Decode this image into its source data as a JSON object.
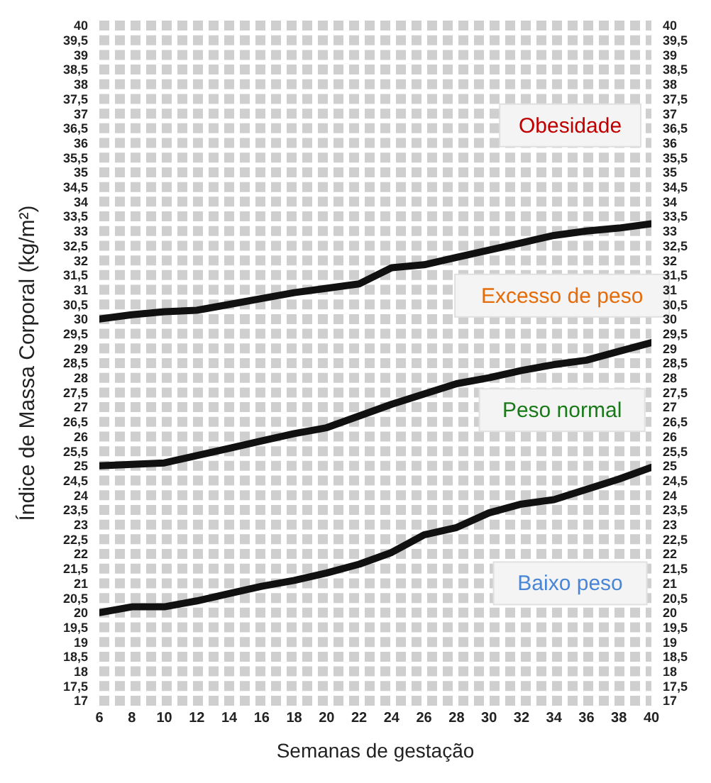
{
  "chart_data": {
    "type": "line",
    "xlabel": "Semanas de gestação",
    "ylabel": "Índice de Massa Corporal (kg/m²)",
    "x": [
      6,
      8,
      10,
      12,
      14,
      16,
      18,
      20,
      22,
      24,
      26,
      28,
      30,
      32,
      34,
      36,
      38,
      40
    ],
    "series": [
      {
        "color": "#111111",
        "values": [
          30,
          30.15,
          30.25,
          30.3,
          30.5,
          30.7,
          30.9,
          31.05,
          31.2,
          31.75,
          31.85,
          32.1,
          32.35,
          32.6,
          32.85,
          33.0,
          33.1,
          33.25
        ]
      },
      {
        "color": "#111111",
        "values": [
          25,
          25.05,
          25.1,
          25.35,
          25.6,
          25.85,
          26.1,
          26.3,
          26.7,
          27.1,
          27.45,
          27.8,
          28.0,
          28.25,
          28.45,
          28.6,
          28.9,
          29.2
        ]
      },
      {
        "color": "#111111",
        "values": [
          20,
          20.2,
          20.2,
          20.4,
          20.65,
          20.9,
          21.1,
          21.35,
          21.65,
          22.05,
          22.65,
          22.9,
          23.4,
          23.7,
          23.85,
          24.2,
          24.55,
          24.95
        ]
      }
    ],
    "annotations": [
      "Obesidade",
      "Excesso de peso",
      "Peso normal",
      "Baixo peso"
    ],
    "xlim": [
      6,
      40
    ],
    "xticks": [
      6,
      8,
      10,
      12,
      14,
      16,
      18,
      20,
      22,
      24,
      26,
      28,
      30,
      32,
      34,
      36,
      38,
      40
    ],
    "ylim": [
      17,
      40
    ],
    "yticks": [
      17,
      {
        "value": 17.5,
        "label": "17,5"
      },
      18,
      {
        "value": 18.5,
        "label": "18,5"
      },
      19,
      {
        "value": 19.5,
        "label": "19,5"
      },
      20,
      {
        "value": 20.5,
        "label": "20,5"
      },
      21,
      {
        "value": 21.5,
        "label": "21,5"
      },
      22,
      {
        "value": 22.5,
        "label": "22,5"
      },
      23,
      {
        "value": 23.5,
        "label": "23,5"
      },
      24,
      {
        "value": 24.5,
        "label": "24,5"
      },
      25,
      {
        "value": 25.5,
        "label": "25,5"
      },
      26,
      {
        "value": 26.5,
        "label": "26,5"
      },
      27,
      {
        "value": 27.5,
        "label": "27,5"
      },
      28,
      {
        "value": 28.5,
        "label": "28,5"
      },
      29,
      {
        "value": 29.5,
        "label": "29,5"
      },
      30,
      {
        "value": 30.5,
        "label": "30,5"
      },
      31,
      {
        "value": 31.5,
        "label": "31,5"
      },
      32,
      {
        "value": 32.5,
        "label": "32,5"
      },
      33,
      {
        "value": 33.5,
        "label": "33,5"
      },
      34,
      {
        "value": 34.5,
        "label": "34,5"
      },
      35,
      {
        "value": 35.5,
        "label": "35,5"
      },
      36,
      {
        "value": 36.5,
        "label": "36,5"
      },
      37,
      {
        "value": 37.5,
        "label": "37,5"
      },
      38,
      {
        "value": 38.5,
        "label": "38,5"
      },
      39,
      {
        "value": 39.5,
        "label": "39,5"
      },
      40
    ],
    "y2lim": [
      17,
      40
    ],
    "y2ticks": [
      17,
      {
        "value": 17.5,
        "label": "17,5"
      },
      18,
      {
        "value": 18.5,
        "label": "18,5"
      },
      19,
      {
        "value": 19.5,
        "label": "19,5"
      },
      20,
      {
        "value": 20.5,
        "label": "20,5"
      },
      21,
      {
        "value": 21.5,
        "label": "21,5"
      },
      22,
      {
        "value": 22.5,
        "label": "22,5"
      },
      23,
      {
        "value": 23.5,
        "label": "23,5"
      },
      24,
      {
        "value": 24.5,
        "label": "24,5"
      },
      25,
      {
        "value": 25.5,
        "label": "25,5"
      },
      26,
      {
        "value": 26.5,
        "label": "26,5"
      },
      27,
      {
        "value": 27.5,
        "label": "27,5"
      },
      28,
      {
        "value": 28.5,
        "label": "28,5"
      },
      29,
      {
        "value": 29.5,
        "label": "29,5"
      },
      30,
      {
        "value": 30.5,
        "label": "30,5"
      },
      31,
      {
        "value": 31.5,
        "label": "31,5"
      },
      32,
      {
        "value": 32.5,
        "label": "32,5"
      },
      33,
      {
        "value": 33.5,
        "label": "33,5"
      },
      34,
      {
        "value": 34.5,
        "label": "34,5"
      },
      35,
      {
        "value": 35.5,
        "label": "35,5"
      },
      36,
      {
        "value": 36.5,
        "label": "36,5"
      },
      37,
      {
        "value": 37.5,
        "label": "37,5"
      },
      38,
      {
        "value": 38.5,
        "label": "38,5"
      },
      39,
      {
        "value": 39.5,
        "label": "39,5"
      },
      40
    ],
    "grid": "y",
    "marker": "none",
    "line_style": "solid"
  }
}
